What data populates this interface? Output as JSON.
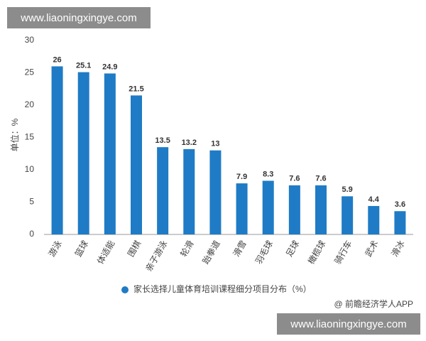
{
  "chart_data": {
    "type": "bar",
    "watermark_top": "www.liaoningxingye.com",
    "watermark_bottom": "www.liaoningxingye.com",
    "y_label": "单位：%",
    "legend_label": "家长选择儿童体育培训课程细分项目分布（%）",
    "source": "@ 前瞻经济学人APP",
    "categories": [
      "游泳",
      "篮球",
      "体适能",
      "围棋",
      "亲子游泳",
      "轮滑",
      "跆拳道",
      "滑雪",
      "羽毛球",
      "足球",
      "橄榄球",
      "骑行车",
      "武术",
      "滑冰"
    ],
    "values": [
      26,
      25.1,
      24.9,
      21.5,
      13.5,
      13.2,
      13,
      7.9,
      8.3,
      7.6,
      7.6,
      5.9,
      4.4,
      3.6
    ],
    "color": "#1f7bc5",
    "ylim": [
      0,
      30
    ],
    "yticks": [
      0,
      5,
      10,
      15,
      20,
      25,
      30
    ],
    "grid": false
  }
}
